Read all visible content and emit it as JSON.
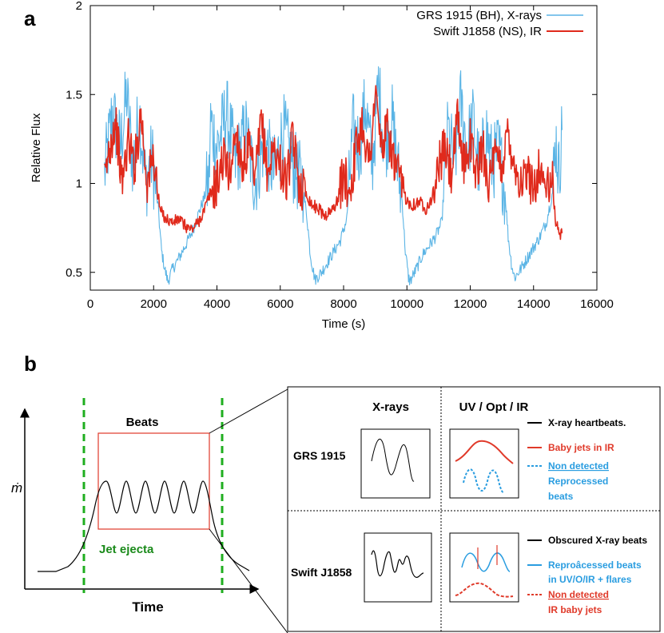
{
  "panel_a": {
    "label": "a",
    "chart_data": {
      "type": "line",
      "xlabel": "Time (s)",
      "ylabel": "Relative Flux",
      "xlim": [
        0,
        16000
      ],
      "ylim": [
        0.4,
        2.0
      ],
      "x_ticks": [
        0,
        2000,
        4000,
        6000,
        8000,
        10000,
        12000,
        14000,
        16000
      ],
      "x_tick_labels": [
        "0",
        "2000",
        "4000",
        "6000",
        "8000",
        "10000",
        "12000",
        "14000",
        "16000"
      ],
      "y_ticks": [
        0.5,
        1.0,
        1.5,
        2.0
      ],
      "y_tick_labels": [
        "0.5",
        "1",
        "1.5",
        "2"
      ],
      "legend_position": "top-right",
      "series": [
        {
          "name": "GRS 1915 (BH), X-rays",
          "color": "#5ab4e5",
          "x": [
            450,
            700,
            950,
            1150,
            1350,
            1550,
            1750,
            1950,
            2150,
            2250,
            2350,
            2450,
            2600,
            2800,
            3000,
            3200,
            3400,
            3600,
            3750,
            3800,
            4000,
            4300,
            4600,
            4900,
            5200,
            5500,
            5800,
            6100,
            6400,
            6700,
            6850,
            6950,
            7050,
            7100,
            7300,
            7500,
            7700,
            7900,
            8100,
            8300,
            8500,
            8700,
            8900,
            9100,
            9300,
            9500,
            9700,
            9850,
            9950,
            10050,
            10100,
            10300,
            10500,
            10700,
            10900,
            11100,
            11300,
            11500,
            11700,
            11900,
            12100,
            12300,
            12500,
            12700,
            12900,
            13100,
            13200,
            13300,
            13400,
            13600,
            13800,
            14000,
            14200,
            14400,
            14600,
            14700,
            14800,
            14900
          ],
          "values": [
            1.05,
            1.4,
            1.2,
            1.5,
            1.1,
            1.4,
            1.0,
            1.15,
            0.85,
            0.62,
            0.52,
            0.45,
            0.52,
            0.58,
            0.65,
            0.72,
            0.82,
            0.92,
            1.02,
            1.35,
            1.2,
            1.4,
            1.1,
            1.3,
            1.0,
            1.25,
            1.05,
            1.3,
            1.1,
            1.0,
            0.8,
            0.6,
            0.5,
            0.46,
            0.5,
            0.56,
            0.62,
            0.68,
            0.8,
            1.3,
            1.2,
            1.45,
            1.1,
            1.55,
            1.2,
            1.4,
            1.1,
            0.9,
            0.62,
            0.47,
            0.45,
            0.52,
            0.6,
            0.65,
            0.7,
            0.78,
            1.3,
            1.1,
            1.45,
            1.2,
            1.35,
            1.05,
            1.3,
            1.1,
            1.2,
            0.95,
            0.7,
            0.55,
            0.47,
            0.52,
            0.58,
            0.64,
            0.7,
            0.78,
            0.95,
            1.25,
            1.05,
            1.3
          ]
        },
        {
          "name": "Swift J1858 (NS), IR",
          "color": "#e02a1c",
          "x": [
            450,
            600,
            800,
            1000,
            1200,
            1400,
            1600,
            1800,
            2000,
            2200,
            2400,
            2600,
            2800,
            3000,
            3200,
            3400,
            3600,
            3800,
            4000,
            4200,
            4400,
            4600,
            4800,
            5000,
            5200,
            5400,
            5600,
            5800,
            6000,
            6200,
            6400,
            6600,
            6800,
            7000,
            7200,
            7400,
            7600,
            7800,
            8000,
            8200,
            8400,
            8600,
            8800,
            9000,
            9200,
            9400,
            9600,
            9800,
            10000,
            10200,
            10400,
            10600,
            10800,
            11000,
            11200,
            11400,
            11600,
            11800,
            12000,
            12200,
            12400,
            12600,
            12800,
            13000,
            13200,
            13400,
            13600,
            13800,
            14000,
            14200,
            14400,
            14600,
            14700,
            14800,
            14900
          ],
          "values": [
            1.0,
            1.2,
            1.35,
            1.0,
            1.25,
            1.1,
            1.4,
            1.0,
            1.15,
            0.85,
            0.8,
            0.78,
            0.8,
            0.76,
            0.74,
            0.78,
            0.85,
            0.95,
            1.0,
            1.15,
            1.05,
            1.3,
            1.1,
            1.2,
            1.0,
            1.35,
            1.05,
            1.2,
            1.1,
            1.0,
            1.25,
            1.0,
            0.95,
            0.88,
            0.86,
            0.82,
            0.84,
            0.9,
            1.05,
            0.95,
            1.2,
            1.35,
            1.1,
            1.5,
            1.2,
            1.3,
            1.1,
            1.0,
            0.9,
            0.88,
            0.9,
            0.86,
            0.92,
            1.1,
            1.2,
            1.05,
            1.35,
            1.1,
            1.25,
            1.05,
            1.2,
            1.0,
            1.15,
            1.1,
            1.3,
            1.1,
            1.0,
            1.05,
            0.98,
            1.1,
            0.95,
            1.0,
            0.78,
            0.72,
            0.72
          ]
        }
      ]
    }
  },
  "panel_b": {
    "label": "b",
    "left": {
      "y_axis_label": "ṁ",
      "x_axis_label": "Time",
      "box_label": "Beats",
      "jet_label": "Jet ejecta",
      "curve_color": "#000000",
      "box_color": "#e03a2a",
      "dash_color": "#1fae1f",
      "jet_color": "#1a8a1a"
    },
    "right": {
      "col_xrays": "X-rays",
      "col_uvoptir": "UV / Opt / IR",
      "row_grs": "GRS 1915",
      "row_swift": "Swift J1858",
      "grs_legend": {
        "black": "X-ray heartbeats.",
        "red": "Baby jets in IR",
        "blue_line1": "Non detected",
        "blue_line2": "Reprocessed",
        "blue_line3": "beats"
      },
      "swift_legend": {
        "black": "Obscured X-ray beats",
        "blue_line1": "Reproâcessed beats",
        "blue_line2": "in  UV/O/IR + flares",
        "red_line1": "Non detected",
        "red_line2": "IR baby jets"
      },
      "blue_color": "#2a9de0",
      "red_color": "#e03a2a"
    }
  }
}
